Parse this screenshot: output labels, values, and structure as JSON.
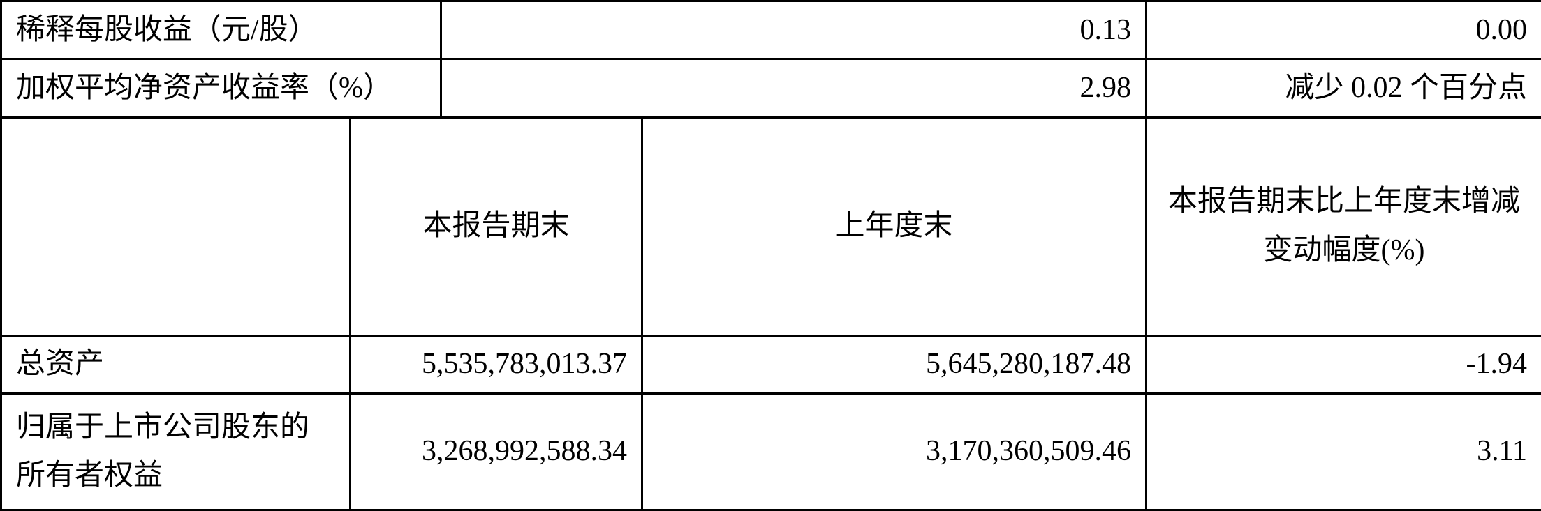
{
  "table": {
    "border_color": "#000000",
    "background_color": "#ffffff",
    "text_color": "#000000",
    "font_family": "SimSun",
    "font_size_pt": 32,
    "row1": {
      "label": "稀释每股收益（元/股）",
      "val1": "0.13",
      "val2": "0.00"
    },
    "row2": {
      "label": "加权平均净资产收益率（%）",
      "val1": "2.98",
      "val2": "减少 0.02 个百分点"
    },
    "header": {
      "col1": "",
      "col2": "本报告期末",
      "col3": "上年度末",
      "col4": "本报告期末比上年度末增减变动幅度(%)"
    },
    "row4": {
      "label": "总资产",
      "val1": "5,535,783,013.37",
      "val2": "5,645,280,187.48",
      "val3": "-1.94"
    },
    "row5": {
      "label": "归属于上市公司股东的所有者权益",
      "val1": "3,268,992,588.34",
      "val2": "3,170,360,509.46",
      "val3": "3.11"
    }
  }
}
